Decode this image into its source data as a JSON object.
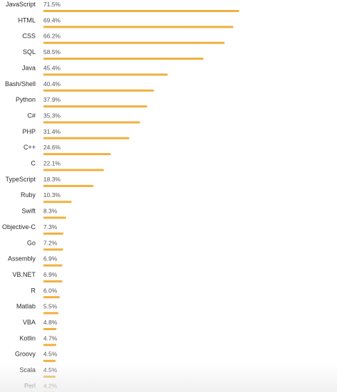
{
  "chart_data": {
    "type": "bar",
    "orientation": "horizontal",
    "unit": "%",
    "bar_color": "#f0b040",
    "xlim": [
      0,
      100
    ],
    "grid": false,
    "categories": [
      "JavaScript",
      "HTML",
      "CSS",
      "SQL",
      "Java",
      "Bash/Shell",
      "Python",
      "C#",
      "PHP",
      "C++",
      "C",
      "TypeScript",
      "Ruby",
      "Swift",
      "Objective-C",
      "Go",
      "Assembly",
      "VB.NET",
      "R",
      "Matlab",
      "VBA",
      "Kotlin",
      "Groovy",
      "Scala",
      "Perl"
    ],
    "values": [
      71.5,
      69.4,
      66.2,
      58.5,
      45.4,
      40.4,
      37.9,
      35.3,
      31.4,
      24.6,
      22.1,
      18.3,
      10.3,
      8.3,
      7.3,
      7.2,
      6.9,
      6.9,
      6.0,
      5.5,
      4.8,
      4.7,
      4.5,
      4.5,
      4.2
    ],
    "value_labels": [
      "71.5%",
      "69.4%",
      "66.2%",
      "58.5%",
      "45.4%",
      "40.4%",
      "37.9%",
      "35.3%",
      "31.4%",
      "24.6%",
      "22.1%",
      "18.3%",
      "10.3%",
      "8.3%",
      "7.3%",
      "7.2%",
      "6.9%",
      "6.9%",
      "6.0%",
      "5.5%",
      "4.8%",
      "4.7%",
      "4.5%",
      "4.5%",
      "4.2%"
    ]
  }
}
